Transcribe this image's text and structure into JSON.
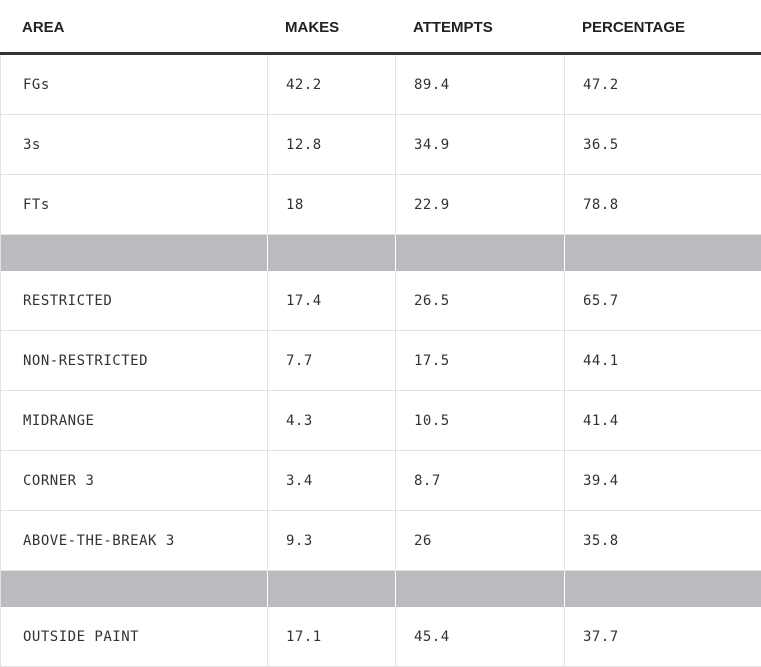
{
  "header": {
    "columns": [
      "AREA",
      "MAKES",
      "ATTEMPTS",
      "PERCENTAGE"
    ]
  },
  "table": {
    "sections": [
      [
        [
          "FGs",
          42.2,
          89.4,
          47.2
        ],
        [
          "3s",
          12.8,
          34.9,
          36.5
        ],
        [
          "FTs",
          18,
          22.9,
          78.8
        ]
      ],
      [
        [
          "RESTRICTED",
          17.4,
          26.5,
          65.7
        ],
        [
          "NON-RESTRICTED",
          7.7,
          17.5,
          44.1
        ],
        [
          "MIDRANGE",
          4.3,
          10.5,
          41.4
        ],
        [
          "CORNER 3",
          3.4,
          8.7,
          39.4
        ],
        [
          "ABOVE-THE-BREAK 3",
          9.3,
          26,
          35.8
        ]
      ],
      [
        [
          "OUTSIDE PAINT",
          17.1,
          45.4,
          37.7
        ]
      ]
    ]
  }
}
